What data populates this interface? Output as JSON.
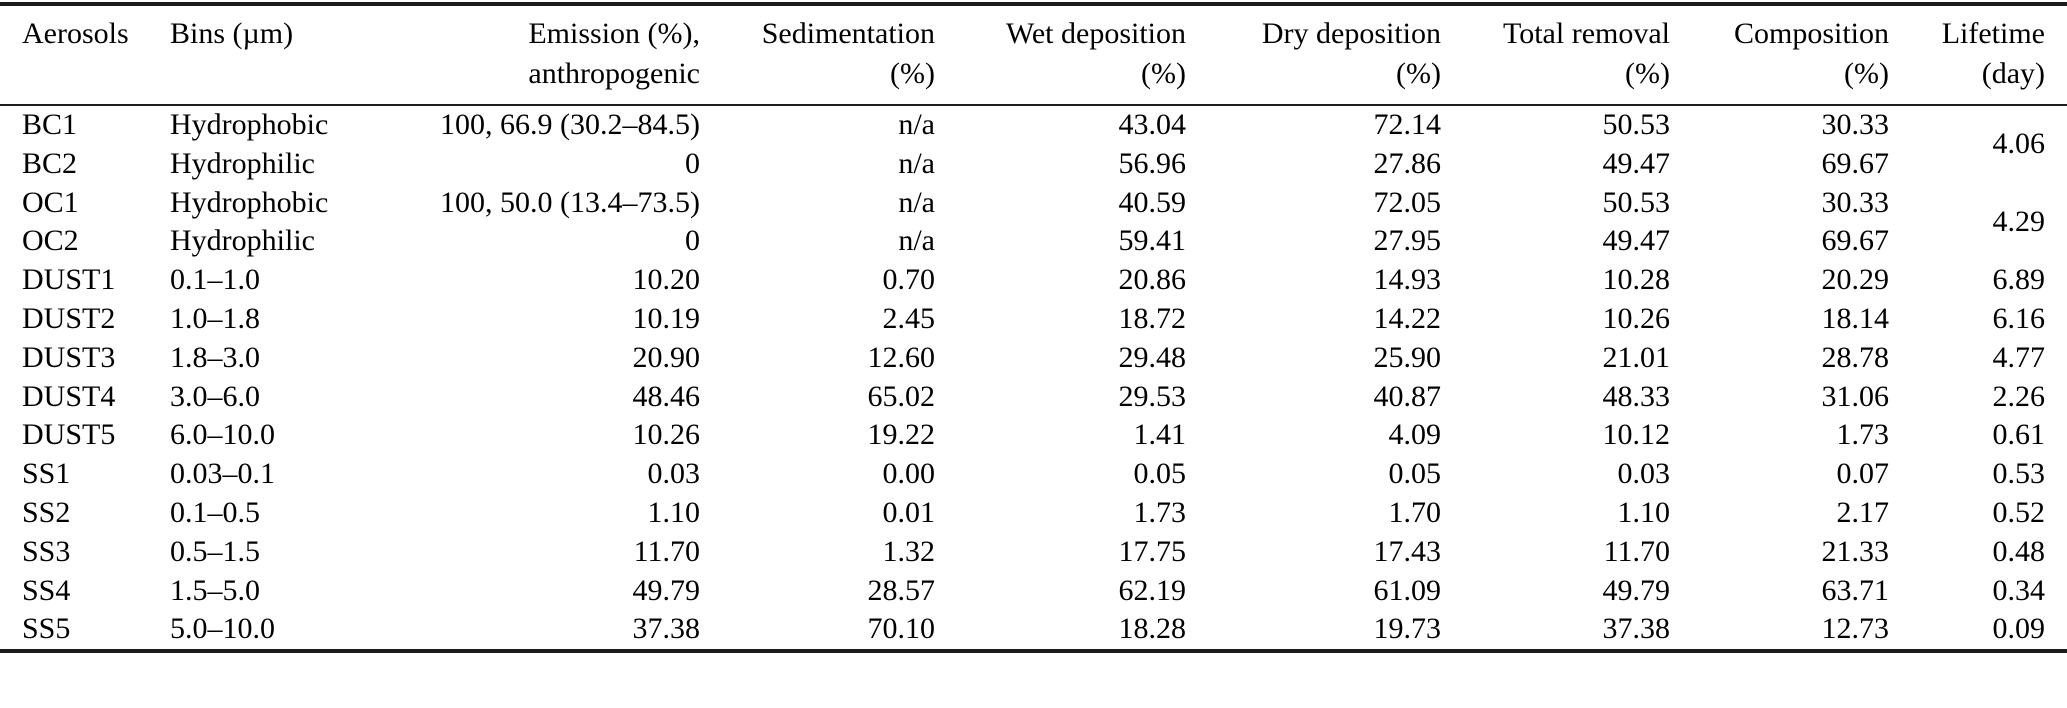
{
  "colors": {
    "text": "#000000",
    "background": "#ffffff",
    "rule": "#1b1b1b"
  },
  "table": {
    "columns": [
      {
        "key": "aerosol",
        "line1": "Aerosols",
        "line2": "",
        "align": "left"
      },
      {
        "key": "bins",
        "line1": "Bins (µm)",
        "line2": "",
        "align": "left"
      },
      {
        "key": "emission",
        "line1": "Emission (%),",
        "line2": "anthropogenic",
        "align": "right"
      },
      {
        "key": "sedimentation",
        "line1": "Sedimentation",
        "line2": "(%)",
        "align": "right"
      },
      {
        "key": "wet_deposition",
        "line1": "Wet deposition",
        "line2": "(%)",
        "align": "right"
      },
      {
        "key": "dry_deposition",
        "line1": "Dry deposition",
        "line2": "(%)",
        "align": "right"
      },
      {
        "key": "total_removal",
        "line1": "Total removal",
        "line2": "(%)",
        "align": "right"
      },
      {
        "key": "composition",
        "line1": "Composition",
        "line2": "(%)",
        "align": "right"
      },
      {
        "key": "lifetime",
        "line1": "Lifetime",
        "line2": "(day)",
        "align": "right"
      }
    ],
    "rows": [
      {
        "cells": [
          "BC1",
          "Hydrophobic",
          "100, 66.9 (30.2–84.5)",
          "n/a",
          "43.04",
          "72.14",
          "50.53",
          "30.33"
        ],
        "lifetime": "4.06",
        "lifetime_rowspan": 2
      },
      {
        "cells": [
          "BC2",
          "Hydrophilic",
          "0",
          "n/a",
          "56.96",
          "27.86",
          "49.47",
          "69.67"
        ],
        "lifetime": null
      },
      {
        "cells": [
          "OC1",
          "Hydrophobic",
          "100, 50.0 (13.4–73.5)",
          "n/a",
          "40.59",
          "72.05",
          "50.53",
          "30.33"
        ],
        "lifetime": "4.29",
        "lifetime_rowspan": 2
      },
      {
        "cells": [
          "OC2",
          "Hydrophilic",
          "0",
          "n/a",
          "59.41",
          "27.95",
          "49.47",
          "69.67"
        ],
        "lifetime": null
      },
      {
        "cells": [
          "DUST1",
          "0.1–1.0",
          "10.20",
          "0.70",
          "20.86",
          "14.93",
          "10.28",
          "20.29"
        ],
        "lifetime": "6.89"
      },
      {
        "cells": [
          "DUST2",
          "1.0–1.8",
          "10.19",
          "2.45",
          "18.72",
          "14.22",
          "10.26",
          "18.14"
        ],
        "lifetime": "6.16"
      },
      {
        "cells": [
          "DUST3",
          "1.8–3.0",
          "20.90",
          "12.60",
          "29.48",
          "25.90",
          "21.01",
          "28.78"
        ],
        "lifetime": "4.77"
      },
      {
        "cells": [
          "DUST4",
          "3.0–6.0",
          "48.46",
          "65.02",
          "29.53",
          "40.87",
          "48.33",
          "31.06"
        ],
        "lifetime": "2.26"
      },
      {
        "cells": [
          "DUST5",
          "6.0–10.0",
          "10.26",
          "19.22",
          "1.41",
          "4.09",
          "10.12",
          "1.73"
        ],
        "lifetime": "0.61"
      },
      {
        "cells": [
          "SS1",
          "0.03–0.1",
          "0.03",
          "0.00",
          "0.05",
          "0.05",
          "0.03",
          "0.07"
        ],
        "lifetime": "0.53"
      },
      {
        "cells": [
          "SS2",
          "0.1–0.5",
          "1.10",
          "0.01",
          "1.73",
          "1.70",
          "1.10",
          "2.17"
        ],
        "lifetime": "0.52"
      },
      {
        "cells": [
          "SS3",
          "0.5–1.5",
          "11.70",
          "1.32",
          "17.75",
          "17.43",
          "11.70",
          "21.33"
        ],
        "lifetime": "0.48"
      },
      {
        "cells": [
          "SS4",
          "1.5–5.0",
          "49.79",
          "28.57",
          "62.19",
          "61.09",
          "49.79",
          "63.71"
        ],
        "lifetime": "0.34"
      },
      {
        "cells": [
          "SS5",
          "5.0–10.0",
          "37.38",
          "70.10",
          "18.28",
          "19.73",
          "37.38",
          "12.73"
        ],
        "lifetime": "0.09"
      }
    ]
  }
}
